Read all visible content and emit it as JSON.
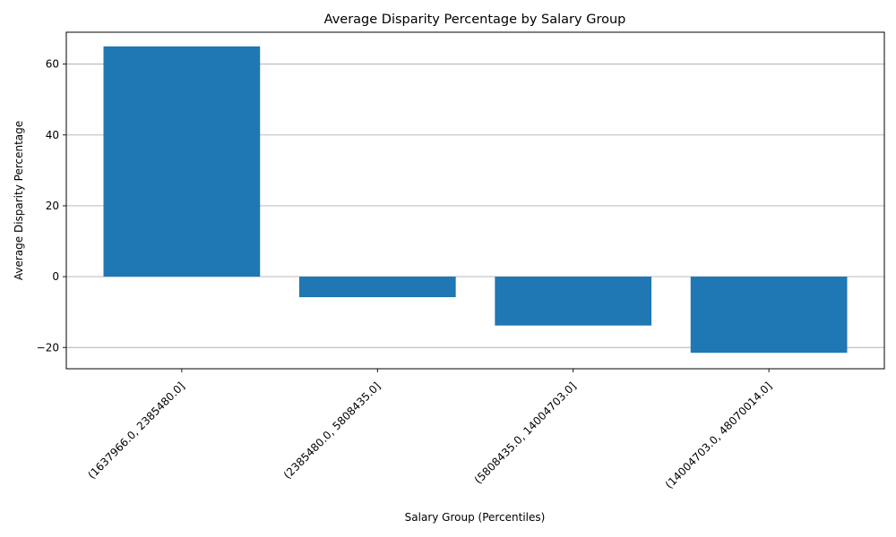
{
  "chart_data": {
    "type": "bar",
    "title": "Average Disparity Percentage by Salary Group",
    "xlabel": "Salary Group (Percentiles)",
    "ylabel": "Average Disparity Percentage",
    "categories": [
      "(1637966.0, 2385480.0]",
      "(2385480.0, 5808435.0]",
      "(5808435.0, 14004703.0]",
      "(14004703.0, 48070014.0]"
    ],
    "values": [
      65.0,
      -5.8,
      -13.8,
      -21.5
    ],
    "ylim": [
      -26,
      69
    ],
    "yticks": [
      -20,
      0,
      20,
      40,
      60
    ],
    "ytick_labels": [
      "−20",
      "0",
      "20",
      "40",
      "60"
    ],
    "grid": "y",
    "bar_color": "#1f77b4"
  }
}
